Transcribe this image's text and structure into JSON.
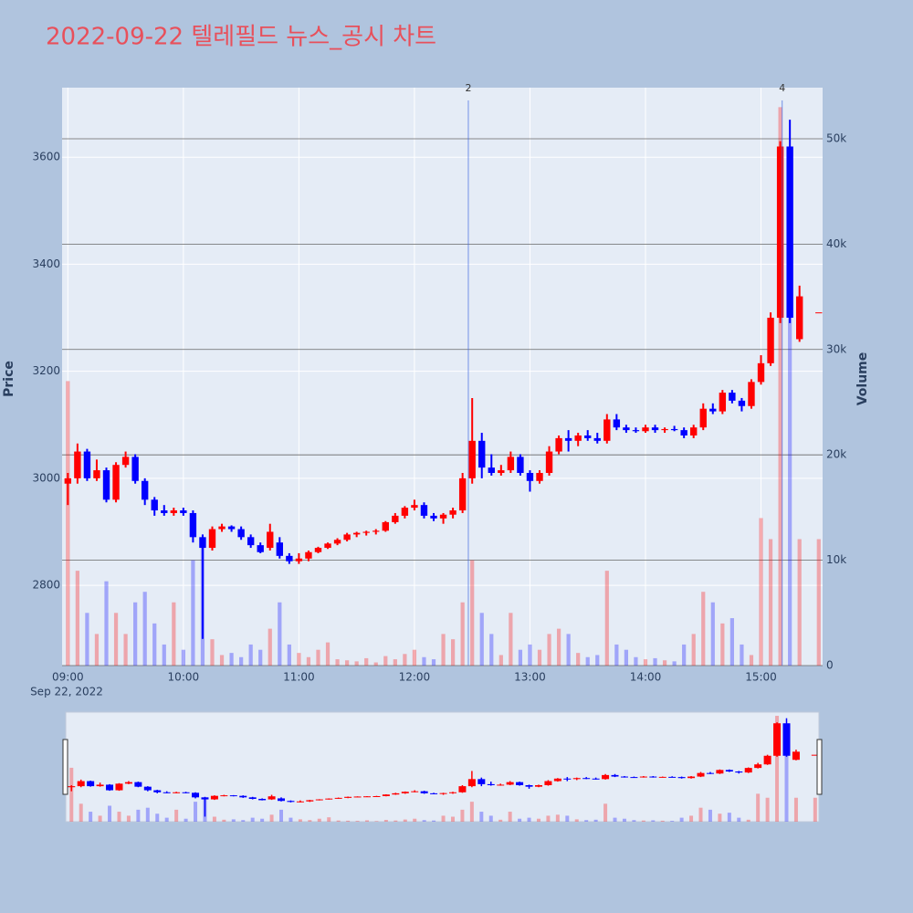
{
  "chart_data": {
    "type": "candlestick",
    "title": "2022-09-22 텔레필드 뉴스_공시 차트",
    "y_label": "Price",
    "y2_label": "Volume",
    "x": [
      "09:00",
      "09:05",
      "09:10",
      "09:15",
      "09:20",
      "09:25",
      "09:30",
      "09:35",
      "09:40",
      "09:45",
      "09:50",
      "09:55",
      "10:00",
      "10:05",
      "10:10",
      "10:15",
      "10:20",
      "10:25",
      "10:30",
      "10:35",
      "10:40",
      "10:45",
      "10:50",
      "10:55",
      "11:00",
      "11:05",
      "11:10",
      "11:15",
      "11:20",
      "11:25",
      "11:30",
      "11:35",
      "11:40",
      "11:45",
      "11:50",
      "11:55",
      "12:00",
      "12:05",
      "12:10",
      "12:15",
      "12:20",
      "12:25",
      "12:30",
      "12:35",
      "12:40",
      "12:45",
      "12:50",
      "12:55",
      "13:00",
      "13:05",
      "13:10",
      "13:15",
      "13:20",
      "13:25",
      "13:30",
      "13:35",
      "13:40",
      "13:45",
      "13:50",
      "13:55",
      "14:00",
      "14:05",
      "14:10",
      "14:15",
      "14:20",
      "14:25",
      "14:30",
      "14:35",
      "14:40",
      "14:45",
      "14:50",
      "14:55",
      "15:00",
      "15:05",
      "15:10",
      "15:15",
      "15:20",
      "15:30"
    ],
    "open": [
      2990,
      3000,
      3050,
      3000,
      3015,
      2960,
      3025,
      3040,
      2995,
      2960,
      2940,
      2935,
      2940,
      2935,
      2890,
      2870,
      2905,
      2910,
      2905,
      2890,
      2875,
      2870,
      2880,
      2855,
      2845,
      2850,
      2862,
      2870,
      2878,
      2885,
      2895,
      2898,
      2900,
      2902,
      2918,
      2930,
      2945,
      2950,
      2930,
      2925,
      2932,
      2940,
      3000,
      3070,
      3020,
      3010,
      3015,
      3040,
      3010,
      2995,
      3010,
      3050,
      3075,
      3070,
      3080,
      3075,
      3070,
      3110,
      3095,
      3090,
      3088,
      3095,
      3090,
      3092,
      3090,
      3080,
      3095,
      3130,
      3125,
      3160,
      3145,
      3135,
      3180,
      3215,
      3300,
      3620,
      3260,
      3310
    ],
    "high": [
      3010,
      3065,
      3055,
      3035,
      3020,
      3030,
      3050,
      3045,
      3000,
      2965,
      2950,
      2945,
      2945,
      2940,
      2895,
      2910,
      2915,
      2912,
      2910,
      2895,
      2880,
      2915,
      2890,
      2860,
      2860,
      2865,
      2872,
      2880,
      2888,
      2898,
      2900,
      2902,
      2905,
      2920,
      2935,
      2948,
      2960,
      2955,
      2935,
      2935,
      2945,
      3010,
      3150,
      3085,
      3045,
      3025,
      3050,
      3045,
      3015,
      3015,
      3060,
      3080,
      3090,
      3085,
      3090,
      3085,
      3120,
      3120,
      3100,
      3095,
      3100,
      3100,
      3095,
      3098,
      3095,
      3100,
      3140,
      3140,
      3165,
      3165,
      3150,
      3185,
      3230,
      3310,
      3630,
      3670,
      3360,
      3310
    ],
    "low": [
      2950,
      2990,
      2995,
      2995,
      2955,
      2955,
      3020,
      2990,
      2950,
      2930,
      2930,
      2930,
      2930,
      2880,
      2700,
      2865,
      2900,
      2900,
      2885,
      2870,
      2860,
      2865,
      2850,
      2840,
      2840,
      2845,
      2860,
      2868,
      2875,
      2882,
      2890,
      2893,
      2895,
      2900,
      2915,
      2925,
      2940,
      2925,
      2920,
      2915,
      2925,
      2935,
      2990,
      3000,
      3005,
      3005,
      3010,
      3005,
      2975,
      2990,
      3005,
      3045,
      3050,
      3060,
      3070,
      3065,
      3065,
      3090,
      3085,
      3085,
      3085,
      3085,
      3085,
      3088,
      3075,
      3075,
      3090,
      3120,
      3120,
      3140,
      3125,
      3130,
      3175,
      3210,
      3290,
      3290,
      3255,
      3310
    ],
    "close": [
      3000,
      3050,
      3000,
      3015,
      2960,
      3025,
      3040,
      2995,
      2960,
      2940,
      2935,
      2940,
      2935,
      2890,
      2870,
      2905,
      2910,
      2905,
      2890,
      2875,
      2862,
      2900,
      2855,
      2845,
      2850,
      2862,
      2870,
      2878,
      2885,
      2895,
      2898,
      2900,
      2902,
      2918,
      2930,
      2945,
      2950,
      2930,
      2925,
      2932,
      2940,
      3000,
      3070,
      3020,
      3010,
      3015,
      3040,
      3010,
      2995,
      3010,
      3050,
      3075,
      3070,
      3080,
      3075,
      3070,
      3110,
      3095,
      3090,
      3088,
      3095,
      3090,
      3092,
      3090,
      3080,
      3095,
      3130,
      3125,
      3160,
      3145,
      3135,
      3180,
      3215,
      3300,
      3620,
      3300,
      3340,
      3310
    ],
    "volume": [
      27000,
      9000,
      5000,
      3000,
      8000,
      5000,
      3000,
      6000,
      7000,
      4000,
      2000,
      6000,
      1500,
      10000,
      12000,
      2500,
      1000,
      1200,
      800,
      2000,
      1500,
      3500,
      6000,
      2000,
      1200,
      800,
      1500,
      2200,
      600,
      500,
      400,
      700,
      300,
      900,
      600,
      1100,
      1500,
      800,
      600,
      3000,
      2500,
      6000,
      10000,
      5000,
      3000,
      1000,
      5000,
      1500,
      2000,
      1500,
      3000,
      3500,
      3000,
      1200,
      800,
      1000,
      9000,
      2000,
      1500,
      800,
      600,
      700,
      500,
      400,
      2000,
      3000,
      7000,
      6000,
      4000,
      4500,
      2000,
      1000,
      14000,
      12000,
      53000,
      33000,
      12000,
      12000
    ],
    "increasing_color": "#ff0000",
    "decreasing_color": "#0000ff",
    "xlim": [
      "08:57",
      "15:32"
    ],
    "xticks": [
      "09:00",
      "10:00",
      "11:00",
      "12:00",
      "13:00",
      "14:00",
      "15:00"
    ],
    "x_date_label": "Sep 22, 2022",
    "ylim": [
      2650,
      3730
    ],
    "yticks": [
      2800,
      3000,
      3200,
      3400,
      3600
    ],
    "y2lim": [
      0,
      54850
    ],
    "y2ticks": [
      0,
      {
        "value": 10000,
        "label": "10k"
      },
      {
        "value": 20000,
        "label": "20k"
      },
      {
        "value": 30000,
        "label": "30k"
      },
      {
        "value": 40000,
        "label": "40k"
      },
      {
        "value": 50000,
        "label": "50k"
      }
    ],
    "annotations": [
      {
        "x": "12:28",
        "text": "2"
      },
      {
        "x": "15:11",
        "text": "4"
      }
    ],
    "grid": true,
    "rangeslider": true
  }
}
